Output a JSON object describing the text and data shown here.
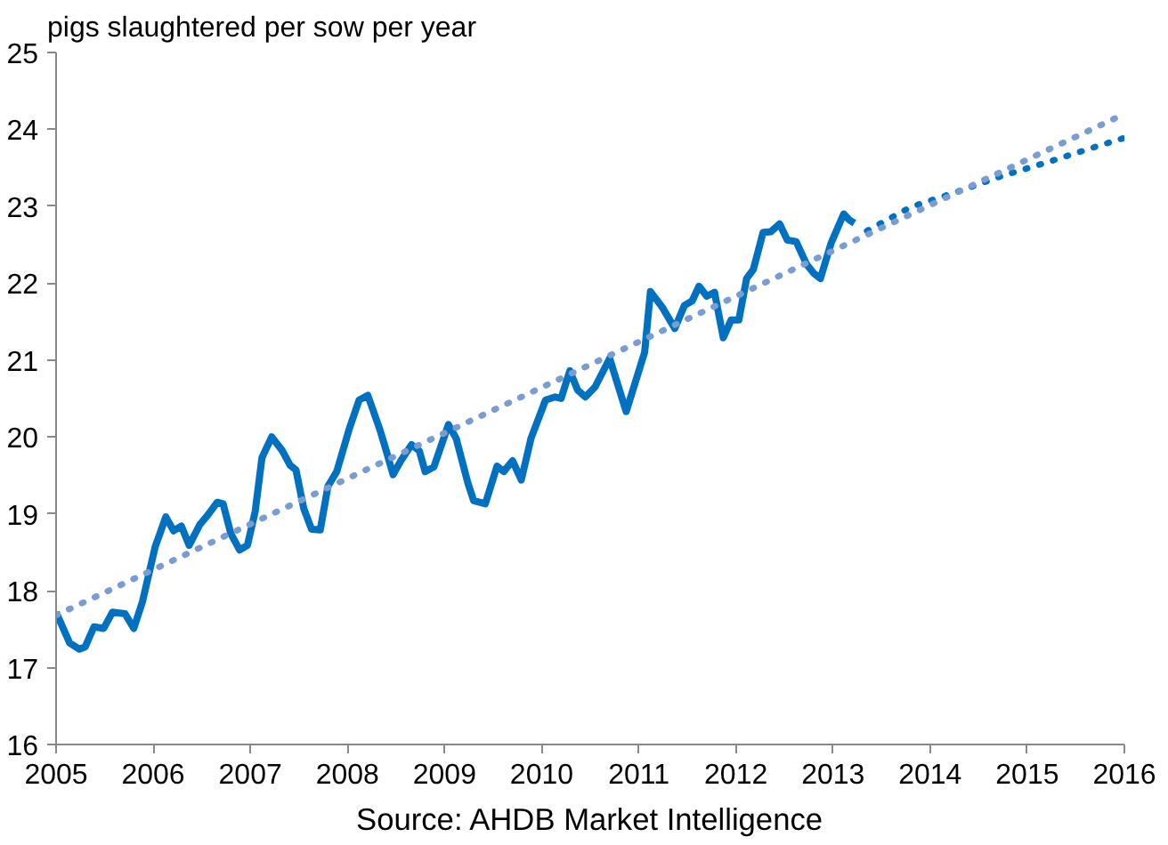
{
  "chart_data": {
    "type": "line",
    "subtitle": "pigs slaughtered per sow per year",
    "annotations": [
      "Source: AHDB Market Intelligence"
    ],
    "xlim": [
      2005,
      2016
    ],
    "xticks": [
      2005,
      2006,
      2007,
      2008,
      2009,
      2010,
      2011,
      2012,
      2013,
      2014,
      2015,
      2016
    ],
    "ylim": [
      16,
      25
    ],
    "yticks": [
      16,
      17,
      18,
      19,
      20,
      21,
      22,
      23,
      24,
      25
    ],
    "grid": false,
    "marker": "none",
    "series": [
      {
        "color": "#0070c0",
        "line_style": "solid",
        "x": [
          2005.0,
          2005.14,
          2005.24,
          2005.3,
          2005.39,
          2005.49,
          2005.58,
          2005.71,
          2005.8,
          2005.89,
          2006.02,
          2006.13,
          2006.21,
          2006.29,
          2006.37,
          2006.48,
          2006.56,
          2006.66,
          2006.72,
          2006.8,
          2006.89,
          2006.97,
          2007.05,
          2007.12,
          2007.22,
          2007.33,
          2007.41,
          2007.47,
          2007.55,
          2007.63,
          2007.72,
          2007.8,
          2007.89,
          2008.02,
          2008.12,
          2008.21,
          2008.33,
          2008.39,
          2008.47,
          2008.55,
          2008.66,
          2008.74,
          2008.8,
          2008.89,
          2009.04,
          2009.12,
          2009.24,
          2009.3,
          2009.42,
          2009.54,
          2009.61,
          2009.7,
          2009.79,
          2009.89,
          2010.04,
          2010.14,
          2010.2,
          2010.29,
          2010.37,
          2010.45,
          2010.55,
          2010.7,
          2010.87,
          2011.06,
          2011.12,
          2011.24,
          2011.37,
          2011.47,
          2011.55,
          2011.62,
          2011.7,
          2011.78,
          2011.87,
          2011.95,
          2012.03,
          2012.11,
          2012.18,
          2012.28,
          2012.36,
          2012.45,
          2012.53,
          2012.62,
          2012.73,
          2012.8,
          2012.87,
          2012.98,
          2013.11,
          2013.17,
          2013.22
        ],
        "values": [
          17.72,
          17.32,
          17.24,
          17.27,
          17.53,
          17.51,
          17.72,
          17.7,
          17.51,
          17.86,
          18.57,
          18.96,
          18.78,
          18.84,
          18.59,
          18.86,
          18.98,
          19.15,
          19.13,
          18.74,
          18.53,
          18.59,
          19.03,
          19.73,
          20.0,
          19.82,
          19.63,
          19.57,
          19.07,
          18.8,
          18.79,
          19.36,
          19.55,
          20.11,
          20.48,
          20.54,
          20.11,
          19.86,
          19.51,
          19.69,
          19.9,
          19.82,
          19.55,
          19.61,
          20.16,
          19.98,
          19.4,
          19.17,
          19.13,
          19.62,
          19.55,
          19.69,
          19.44,
          19.98,
          20.48,
          20.52,
          20.5,
          20.86,
          20.61,
          20.52,
          20.65,
          21.02,
          20.33,
          21.1,
          21.89,
          21.69,
          21.41,
          21.71,
          21.77,
          21.96,
          21.83,
          21.88,
          21.29,
          21.52,
          21.52,
          22.06,
          22.18,
          22.66,
          22.67,
          22.77,
          22.56,
          22.54,
          22.24,
          22.13,
          22.06,
          22.52,
          22.9,
          22.82,
          22.78
        ]
      },
      {
        "color": "#0070c0",
        "line_style": "dotted",
        "x": [
          2013.35,
          2013.8,
          2014.26,
          2014.73,
          2015.2,
          2015.67,
          2016.0
        ],
        "values": [
          22.68,
          22.99,
          23.18,
          23.39,
          23.57,
          23.76,
          23.89
        ]
      },
      {
        "color": "#7a9cd0",
        "line_style": "dotted",
        "x": [
          2005.0,
          2016.0
        ],
        "values": [
          17.68,
          24.2
        ]
      }
    ]
  }
}
